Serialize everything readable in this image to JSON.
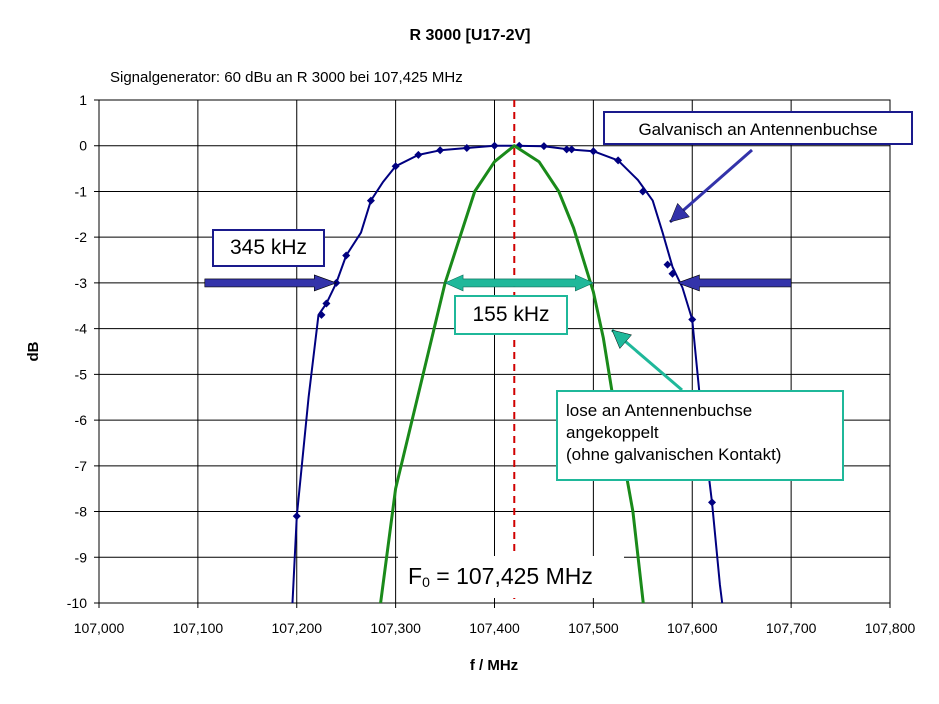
{
  "chart_data": {
    "type": "line",
    "title": "R  3000 [U17-2V]",
    "subtitle": "Signalgenerator: 60 dBu  an R 3000 bei 107,425 MHz",
    "xlabel": "f / MHz",
    "ylabel": "dB",
    "xlim": [
      107.0,
      107.8
    ],
    "ylim": [
      -10,
      1
    ],
    "xticks": [
      "107,000",
      "107,100",
      "107,200",
      "107,300",
      "107,400",
      "107,500",
      "107,600",
      "107,700",
      "107,800"
    ],
    "yticks": [
      "1",
      "0",
      "-1",
      "-2",
      "-3",
      "-4",
      "-5",
      "-6",
      "-7",
      "-8",
      "-9",
      "-10"
    ],
    "grid": "both",
    "center_line_x": 107.42,
    "series": [
      {
        "name": "Galvanisch an Antennenbuchse",
        "color": "#000080",
        "line": [
          [
            107.195,
            -10.3
          ],
          [
            107.2,
            -8.1
          ],
          [
            107.212,
            -5.5
          ],
          [
            107.222,
            -3.7
          ],
          [
            107.23,
            -3.45
          ],
          [
            107.24,
            -3.0
          ],
          [
            107.25,
            -2.4
          ],
          [
            107.265,
            -1.9
          ],
          [
            107.275,
            -1.2
          ],
          [
            107.287,
            -0.8
          ],
          [
            107.3,
            -0.45
          ],
          [
            107.323,
            -0.2
          ],
          [
            107.345,
            -0.1
          ],
          [
            107.372,
            -0.05
          ],
          [
            107.4,
            0.0
          ],
          [
            107.42,
            0.0
          ],
          [
            107.45,
            -0.01
          ],
          [
            107.475,
            -0.08
          ],
          [
            107.5,
            -0.12
          ],
          [
            107.525,
            -0.32
          ],
          [
            107.545,
            -0.75
          ],
          [
            107.56,
            -1.2
          ],
          [
            107.57,
            -1.9
          ],
          [
            107.58,
            -2.65
          ],
          [
            107.59,
            -3.1
          ],
          [
            107.6,
            -3.8
          ],
          [
            107.61,
            -6.0
          ],
          [
            107.62,
            -7.8
          ],
          [
            107.628,
            -9.6
          ],
          [
            107.632,
            -10.3
          ]
        ],
        "markers": [
          [
            107.2,
            -8.1
          ],
          [
            107.225,
            -3.7
          ],
          [
            107.23,
            -3.45
          ],
          [
            107.24,
            -3.0
          ],
          [
            107.25,
            -2.4
          ],
          [
            107.275,
            -1.2
          ],
          [
            107.3,
            -0.45
          ],
          [
            107.323,
            -0.2
          ],
          [
            107.345,
            -0.1
          ],
          [
            107.372,
            -0.05
          ],
          [
            107.4,
            0.0
          ],
          [
            107.425,
            0.0
          ],
          [
            107.45,
            -0.01
          ],
          [
            107.473,
            -0.08
          ],
          [
            107.478,
            -0.08
          ],
          [
            107.5,
            -0.12
          ],
          [
            107.525,
            -0.32
          ],
          [
            107.55,
            -1.0
          ],
          [
            107.575,
            -2.6
          ],
          [
            107.58,
            -2.8
          ],
          [
            107.6,
            -3.8
          ],
          [
            107.62,
            -7.8
          ]
        ]
      },
      {
        "name": "lose an Antennenbuchse angekoppelt (ohne galvanischen Kontakt)",
        "color": "#1a8a1a",
        "line": [
          [
            107.283,
            -10.3
          ],
          [
            107.3,
            -7.5
          ],
          [
            107.33,
            -4.8
          ],
          [
            107.35,
            -3.0
          ],
          [
            107.38,
            -1.0
          ],
          [
            107.4,
            -0.35
          ],
          [
            107.42,
            0.0
          ],
          [
            107.445,
            -0.35
          ],
          [
            107.465,
            -1.0
          ],
          [
            107.48,
            -1.8
          ],
          [
            107.5,
            -3.2
          ],
          [
            107.51,
            -4.2
          ],
          [
            107.525,
            -6.2
          ],
          [
            107.54,
            -8.0
          ],
          [
            107.552,
            -10.3
          ]
        ]
      }
    ],
    "annotations": {
      "galvanisch": "Galvanisch an Antennenbuchse",
      "bw_345": "345 kHz",
      "bw_155": "155 kHz",
      "lose_line1": "lose an Antennenbuchse",
      "lose_line2": "angekoppelt",
      "lose_line3": "(ohne galvanischen Kontakt)",
      "f0_prefix": "F",
      "f0_sub": "0",
      "f0_value": " = 107,425 MHz"
    },
    "arrows": {
      "bw_345_level": -3,
      "bw_345_left_from": 107.107,
      "bw_345_left_to": 107.24,
      "bw_345_right_from": 107.7,
      "bw_345_right_to": 107.585,
      "bw_155_from": 107.35,
      "bw_155_to": 107.5
    },
    "colors": {
      "blue_arrow": "#3333aa",
      "teal_arrow": "#1fb89a",
      "center_line": "#d00000",
      "grid": "#000000"
    }
  }
}
